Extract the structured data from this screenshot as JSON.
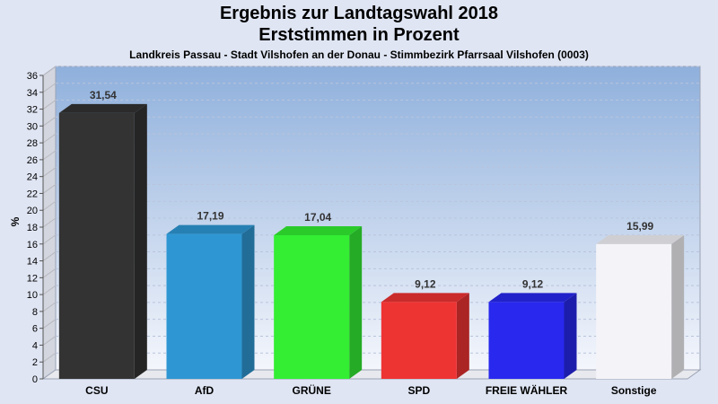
{
  "chart_data": {
    "type": "bar",
    "title": "Ergebnis zur Landtagswahl 2018",
    "title2": "Erststimmen in Prozent",
    "subtitle": "Landkreis Passau - Stadt Vilshofen an der Donau - Stimmbezirk Pfarrsaal Vilshofen (0003)",
    "ylabel": "%",
    "xlabel": "",
    "ylim": [
      0,
      36
    ],
    "yticks": [
      0,
      2,
      4,
      6,
      8,
      10,
      12,
      14,
      16,
      18,
      20,
      22,
      24,
      26,
      28,
      30,
      32,
      34,
      36
    ],
    "grid": true,
    "categories": [
      "CSU",
      "AfD",
      "GRÜNE",
      "SPD",
      "FREIE WÄHLER",
      "Sonstige"
    ],
    "values": [
      31.54,
      17.19,
      17.04,
      9.12,
      9.12,
      15.99
    ],
    "value_labels": [
      "31,54",
      "17,19",
      "17,04",
      "9,12",
      "9,12",
      "15,99"
    ],
    "colors": [
      "#333333",
      "#2e97d3",
      "#33ee33",
      "#ee3333",
      "#2828ee",
      "#f4f4f8"
    ]
  }
}
